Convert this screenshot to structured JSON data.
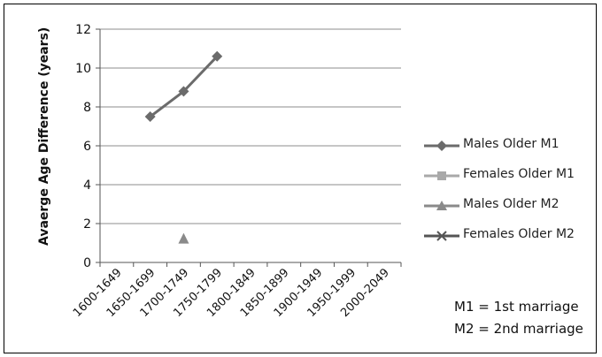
{
  "chart_data": {
    "type": "line",
    "title": "",
    "xlabel": "",
    "ylabel": "Avaerge Age Difference (years)",
    "categories": [
      "1600-1649",
      "1650-1699",
      "1700-1749",
      "1750-1799",
      "1800-1849",
      "1850-1899",
      "1900-1949",
      "1950-1999",
      "2000-2049"
    ],
    "ylim": [
      0,
      12
    ],
    "yticks": [
      "0",
      "2",
      "4",
      "6",
      "8",
      "10",
      "12"
    ],
    "grid": true,
    "legend_position": "right",
    "series": [
      {
        "name": "Males  Older M1",
        "values": [
          null,
          7.5,
          8.8,
          10.6,
          null,
          null,
          null,
          null,
          null
        ],
        "marker": "diamond",
        "color": "#6b6b6b"
      },
      {
        "name": "Females Older M1",
        "values": [
          null,
          null,
          null,
          null,
          null,
          null,
          null,
          null,
          null
        ],
        "marker": "square",
        "color": "#a9a9a9"
      },
      {
        "name": "Males Older M2",
        "values": [
          null,
          null,
          1.2,
          null,
          null,
          null,
          null,
          null,
          null
        ],
        "marker": "triangle",
        "color": "#8a8a8a"
      },
      {
        "name": "Females Older M2",
        "values": [
          null,
          null,
          null,
          null,
          null,
          null,
          null,
          null,
          null
        ],
        "marker": "x",
        "color": "#555555"
      }
    ]
  },
  "notes": {
    "m1": "M1 = 1st marriage",
    "m2": "M2 = 2nd marriage"
  }
}
